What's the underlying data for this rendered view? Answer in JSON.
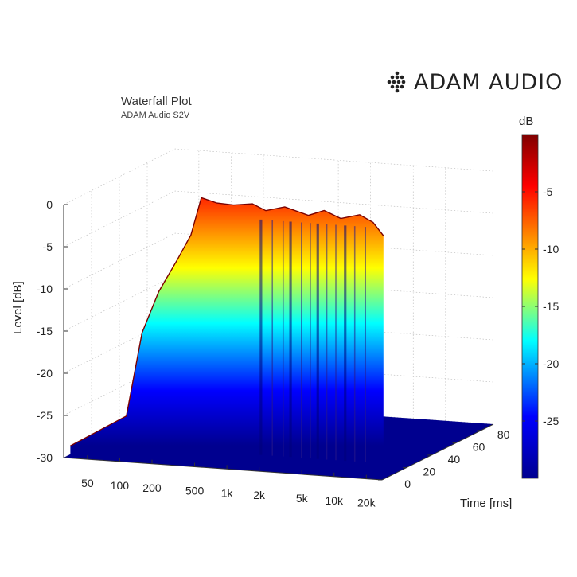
{
  "brand": {
    "name": "ADAM AUDIO",
    "logo_icon": "adam-dot-logo-icon"
  },
  "chart_data": {
    "type": "waterfall",
    "title": "Waterfall Plot",
    "subtitle": "ADAM Audio S2V",
    "zlabel": "Level [dB]",
    "tlabel": "Time [ms]",
    "colorbar_label": "dB",
    "z_ticks": [
      "0",
      "-5",
      "-10",
      "-15",
      "-20",
      "-25",
      "-30"
    ],
    "z_values": [
      0,
      -5,
      -10,
      -15,
      -20,
      -25,
      -30
    ],
    "f_ticks": [
      "50",
      "100",
      "200",
      "500",
      "1k",
      "2k",
      "5k",
      "10k",
      "20k"
    ],
    "f_values": [
      50,
      100,
      200,
      500,
      1000,
      2000,
      5000,
      10000,
      20000
    ],
    "t_ticks": [
      "0",
      "20",
      "40",
      "60",
      "80"
    ],
    "t_values": [
      0,
      20,
      40,
      60,
      80
    ],
    "colorbar_ticks": [
      "-5",
      "-10",
      "-15",
      "-20",
      "-25"
    ],
    "colorbar_values": [
      -5,
      -10,
      -15,
      -20,
      -25
    ],
    "zlim": [
      -30,
      0
    ],
    "colorbar_range": [
      -30,
      0
    ],
    "tlim": [
      0,
      90
    ],
    "colormap": "jet",
    "grid": true,
    "initial_response": [
      {
        "f": 30,
        "db": -29
      },
      {
        "f": 100,
        "db": -25
      },
      {
        "f": 140,
        "db": -15
      },
      {
        "f": 200,
        "db": -10
      },
      {
        "f": 300,
        "db": -6
      },
      {
        "f": 400,
        "db": -3
      },
      {
        "f": 500,
        "db": 1.5
      },
      {
        "f": 700,
        "db": 1.0
      },
      {
        "f": 1000,
        "db": 0.9
      },
      {
        "f": 1500,
        "db": 1.2
      },
      {
        "f": 2000,
        "db": 0.5
      },
      {
        "f": 3000,
        "db": 1.1
      },
      {
        "f": 5000,
        "db": 0.3
      },
      {
        "f": 7000,
        "db": 1.0
      },
      {
        "f": 10000,
        "db": 0.2
      },
      {
        "f": 15000,
        "db": 0.8
      },
      {
        "f": 20000,
        "db": 0.0
      },
      {
        "f": 25000,
        "db": -1.5
      }
    ]
  },
  "colors": {
    "cmap_dark_red": "#7f0000",
    "cmap_red": "#ff0000",
    "cmap_yellow": "#ffff00",
    "cmap_cyan": "#00ffff",
    "cmap_blue": "#0000ff",
    "cmap_dark_blue": "#00008f"
  }
}
